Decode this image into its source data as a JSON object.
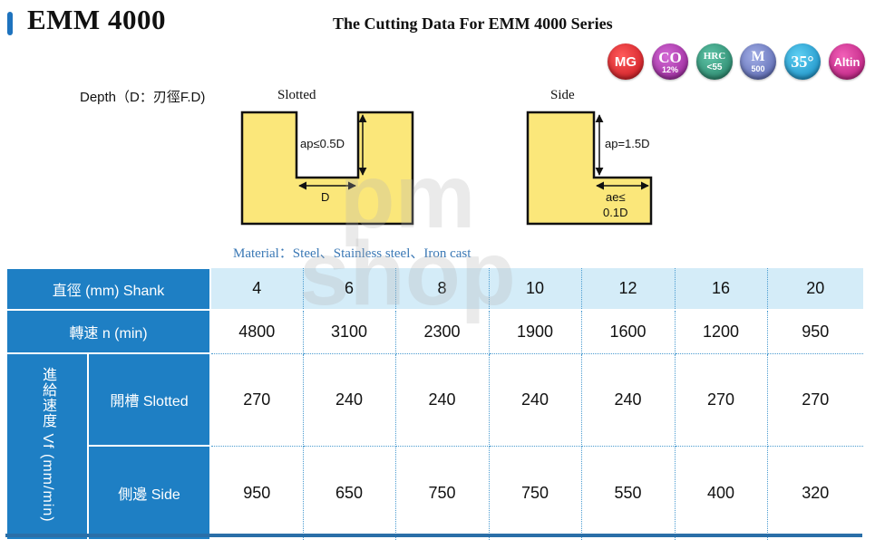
{
  "header": {
    "title": "EMM 4000",
    "subtitle": "The Cutting Data For EMM 4000 Series"
  },
  "badges": [
    {
      "name": "mg-badge",
      "line1": "MG",
      "line2": "",
      "color": "#d01a24"
    },
    {
      "name": "co-badge",
      "line1": "CO",
      "line2": "12%",
      "color": "#9c2a9d"
    },
    {
      "name": "hrc-badge",
      "line1": "HRC",
      "line2": "<55",
      "color": "#2a8a6c"
    },
    {
      "name": "m-badge",
      "line1": "M",
      "line2": "500",
      "color": "#5a68b4"
    },
    {
      "name": "angle-badge",
      "line1": "35°",
      "line2": "",
      "color": "#1495cf"
    },
    {
      "name": "altin-badge",
      "line1": "Altin",
      "line2": "",
      "color": "#c41f84"
    }
  ],
  "diagram": {
    "depth_label": "Depth（D：刃徑F.D)",
    "slotted": {
      "label": "Slotted",
      "ap": "ap≤0.5D",
      "d": "D"
    },
    "side": {
      "label": "Side",
      "ap": "ap=1.5D",
      "ae_line1": "ae≤",
      "ae_line2": "0.1D"
    },
    "fill_color": "#fbe77a"
  },
  "material": "Material：Steel、Stainless  steel、Iron cast",
  "watermark": {
    "line1": "pm",
    "line2": "shop"
  },
  "table": {
    "shank_header": "直徑 (mm) Shank",
    "shanks": [
      "4",
      "6",
      "8",
      "10",
      "12",
      "16",
      "20"
    ],
    "rpm_header": "轉速 n (min)",
    "rpm": [
      "4800",
      "3100",
      "2300",
      "1900",
      "1600",
      "1200",
      "950"
    ],
    "feed_header": "進給速度 Vf (mm/min)",
    "slotted_header": "開槽 Slotted",
    "slotted": [
      "270",
      "240",
      "240",
      "240",
      "240",
      "270",
      "270"
    ],
    "side_header": "側邊 Side",
    "side": [
      "950",
      "650",
      "750",
      "750",
      "550",
      "400",
      "320"
    ]
  },
  "colors": {
    "header_blue": "#1e7fc4",
    "light_blue": "#d4ecf8",
    "accent": "#1e73be"
  }
}
